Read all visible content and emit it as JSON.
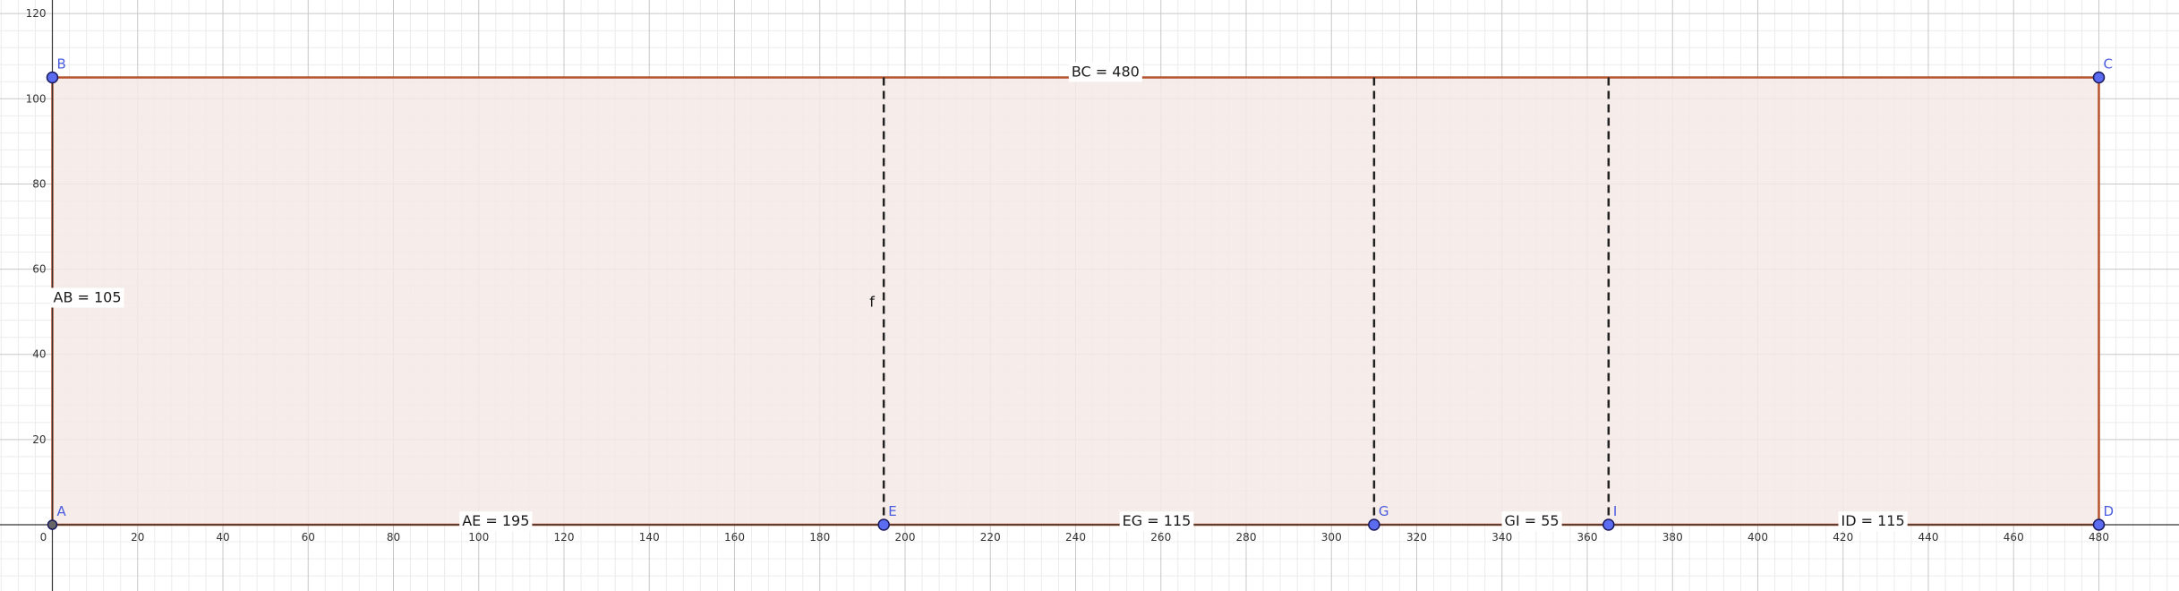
{
  "axes": {
    "x_ticks": [
      0,
      20,
      40,
      60,
      80,
      100,
      120,
      140,
      160,
      180,
      200,
      220,
      240,
      260,
      280,
      300,
      320,
      340,
      360,
      380,
      400,
      420,
      440,
      460,
      480
    ],
    "y_ticks": [
      20,
      40,
      60,
      80,
      100,
      120
    ],
    "grid": true
  },
  "polygon": {
    "fill": "#f5e9e6",
    "stroke": "#b5532e"
  },
  "points": [
    {
      "id": "A",
      "label": "A",
      "x": 0,
      "y": 0,
      "style": "dark"
    },
    {
      "id": "B",
      "label": "B",
      "x": 0,
      "y": 105,
      "style": "blue"
    },
    {
      "id": "C",
      "label": "C",
      "x": 480,
      "y": 105,
      "style": "blue"
    },
    {
      "id": "D",
      "label": "D",
      "x": 480,
      "y": 0,
      "style": "blue"
    },
    {
      "id": "E",
      "label": "E",
      "x": 195,
      "y": 0,
      "style": "blue"
    },
    {
      "id": "G",
      "label": "G",
      "x": 310,
      "y": 0,
      "style": "blue"
    },
    {
      "id": "I",
      "label": "I",
      "x": 365,
      "y": 0,
      "style": "blue"
    }
  ],
  "dashed_lines": [
    {
      "id": "f",
      "label": "f",
      "x": 195
    },
    {
      "id": "g",
      "label": "",
      "x": 310
    },
    {
      "id": "h",
      "label": "",
      "x": 365
    }
  ],
  "segment_labels": [
    {
      "id": "AB",
      "text": "AB = 105",
      "x": 0,
      "y": 53.5,
      "anchor": "left"
    },
    {
      "id": "BC",
      "text": "BC = 480",
      "x": 247,
      "y": 106.5,
      "anchor": "center"
    },
    {
      "id": "AE",
      "text": "AE = 195",
      "x": 104,
      "y": 1,
      "anchor": "center"
    },
    {
      "id": "EG",
      "text": "EG = 115",
      "x": 259,
      "y": 1,
      "anchor": "center"
    },
    {
      "id": "GI",
      "text": "GI = 55",
      "x": 347,
      "y": 1,
      "anchor": "center"
    },
    {
      "id": "ID",
      "text": "ID = 115",
      "x": 427,
      "y": 1,
      "anchor": "center"
    }
  ],
  "colors": {
    "grid_major": "#c8c8c8",
    "grid_minor": "#ececec",
    "axis": "#333333",
    "point_blue": "#4a5cdf",
    "point_dark": "#444444",
    "dashed": "#222222"
  }
}
